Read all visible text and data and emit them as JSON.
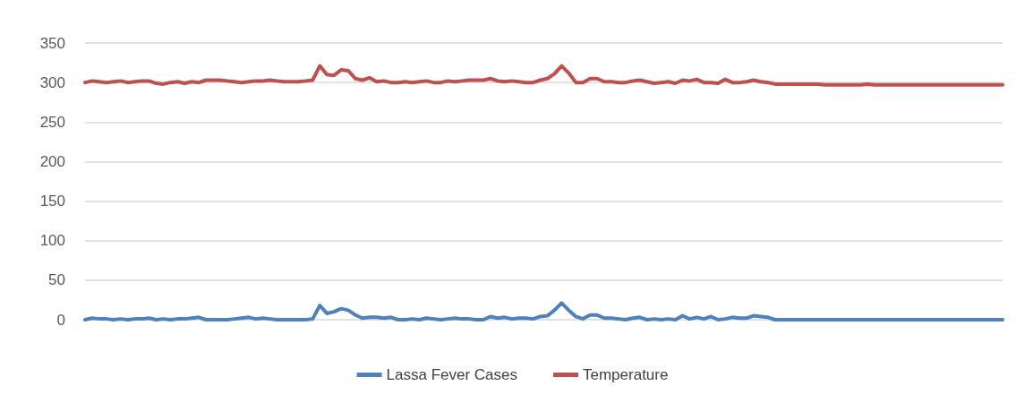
{
  "chart_data": {
    "type": "line",
    "categories": [
      null,
      null,
      null,
      null,
      null,
      null,
      null,
      null,
      null,
      null,
      null,
      null,
      null,
      null,
      null,
      null,
      null,
      null,
      null,
      null,
      null,
      null,
      null,
      null,
      null,
      null,
      null,
      null,
      null,
      null,
      null,
      null,
      null,
      null,
      null,
      null,
      null,
      null,
      null,
      null,
      null,
      null,
      null,
      null,
      null,
      null,
      null,
      null,
      null,
      null,
      null,
      null,
      null,
      null,
      null,
      null,
      null,
      null,
      null,
      null,
      null,
      null,
      null,
      null,
      null,
      null,
      null,
      null,
      null,
      null,
      null,
      null,
      null,
      null,
      null,
      null,
      null,
      null,
      null,
      null,
      null,
      null,
      null,
      null,
      null,
      null,
      null,
      null,
      null,
      null,
      null,
      null,
      null,
      null,
      null,
      null,
      null,
      null,
      null,
      null,
      null,
      null,
      null,
      null,
      null,
      null,
      null,
      null,
      null,
      null,
      null,
      null,
      null,
      null,
      null,
      null,
      null,
      null,
      null,
      null,
      null,
      null,
      null,
      null,
      null,
      null,
      null,
      null,
      null,
      null
    ],
    "series": [
      {
        "name": "Lassa Fever Cases",
        "color": "#4f81bd",
        "values": [
          0,
          2,
          1,
          1,
          0,
          1,
          0,
          1,
          1,
          2,
          0,
          1,
          0,
          1,
          1,
          2,
          3,
          0,
          0,
          0,
          0,
          1,
          2,
          3,
          1,
          2,
          1,
          0,
          0,
          0,
          0,
          0,
          1,
          18,
          8,
          10,
          14,
          12,
          6,
          2,
          3,
          3,
          2,
          3,
          0,
          0,
          1,
          0,
          2,
          1,
          0,
          1,
          2,
          1,
          1,
          0,
          0,
          4,
          2,
          3,
          1,
          2,
          2,
          1,
          4,
          5,
          12,
          21,
          12,
          4,
          1,
          6,
          6,
          2,
          2,
          1,
          0,
          2,
          3,
          0,
          1,
          0,
          1,
          0,
          5,
          1,
          3,
          1,
          4,
          0,
          1,
          3,
          2,
          2,
          5,
          4,
          3,
          0,
          0,
          0,
          0,
          0,
          0,
          0,
          0,
          0,
          0,
          0,
          0,
          0,
          0,
          0,
          0,
          0,
          0,
          0,
          0,
          0,
          0,
          0,
          0,
          0,
          0,
          0,
          0,
          0,
          0,
          0,
          0,
          0
        ]
      },
      {
        "name": "Temperature",
        "color": "#c0504d",
        "values": [
          300,
          302,
          301,
          300,
          301,
          302,
          300,
          301,
          302,
          302,
          299,
          298,
          300,
          301,
          299,
          301,
          300,
          303,
          303,
          303,
          302,
          301,
          300,
          301,
          302,
          302,
          303,
          302,
          301,
          301,
          301,
          302,
          303,
          321,
          310,
          309,
          316,
          315,
          305,
          303,
          306,
          301,
          302,
          300,
          300,
          301,
          300,
          301,
          302,
          300,
          300,
          302,
          301,
          302,
          303,
          303,
          303,
          305,
          302,
          301,
          302,
          301,
          300,
          300,
          303,
          305,
          311,
          321,
          312,
          300,
          300,
          305,
          305,
          301,
          301,
          300,
          300,
          302,
          303,
          301,
          299,
          300,
          301,
          299,
          303,
          302,
          304,
          300,
          300,
          299,
          304,
          300,
          300,
          301,
          303,
          301,
          300,
          298,
          298,
          298,
          298,
          298,
          298,
          298,
          297,
          297,
          297,
          297,
          297,
          297,
          298,
          297,
          297,
          297,
          297,
          297,
          297,
          297,
          297,
          297,
          297,
          297,
          297,
          297,
          297,
          297,
          297,
          297,
          297,
          297
        ]
      }
    ],
    "ylim": [
      0,
      350
    ],
    "yticks": [
      0,
      50,
      100,
      150,
      200,
      250,
      300,
      350
    ],
    "grid": "y",
    "legend": "bottom",
    "tick_labels": "y",
    "line_style": "solid"
  }
}
